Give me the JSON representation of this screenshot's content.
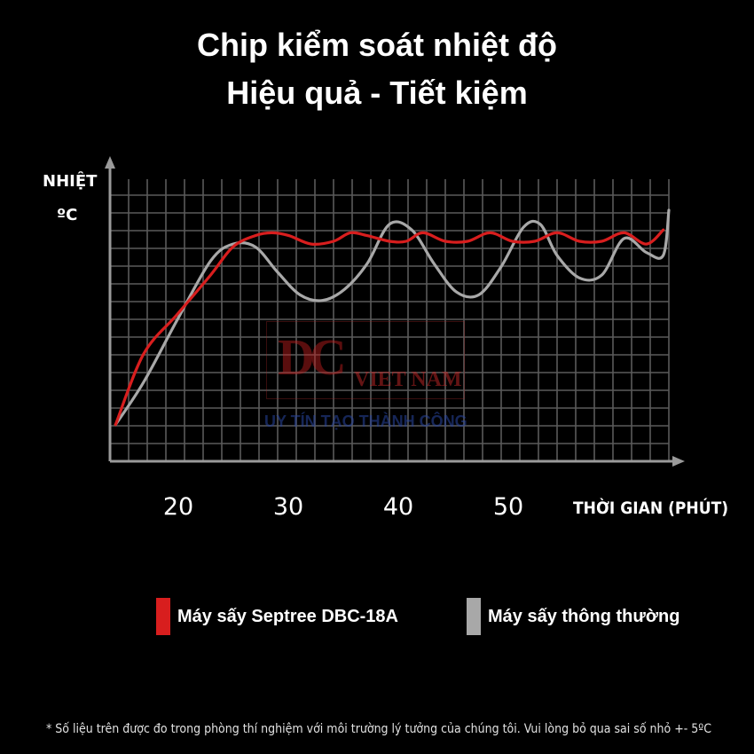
{
  "header": {
    "title_line1": "Chip kiểm soát nhiệt độ",
    "title_line2": "Hiệu quả - Tiết kiệm"
  },
  "watermark": {
    "logo": "DC",
    "brand": "VIET NAM",
    "slogan": "UY TÍN TẠO THÀNH CÔNG"
  },
  "footnote": "* Số liệu trên được đo trong phòng thí nghiệm với môi trường lý tưởng của chúng tôi. Vui lòng bỏ qua sai số nhỏ +- 5ºC",
  "colors": {
    "background": "#000000",
    "grid": "#5a5a5a",
    "axis": "#9a9a9a",
    "series_septree": "#d81e1e",
    "series_normal": "#a8a8a8"
  },
  "chart_data": {
    "type": "line",
    "title": "Chip kiểm soát nhiệt độ",
    "ylabel_line1": "NHIỆT",
    "ylabel_line2": "ºC",
    "xlabel": "THỜI GIAN (PHÚT)",
    "xticks": [
      "20",
      "30",
      "40",
      "50"
    ],
    "xlim": [
      10,
      60
    ],
    "ylim": [
      0,
      10
    ],
    "grid": true,
    "legend_position": "bottom",
    "series": [
      {
        "name": "Máy sấy Septree DBC-18A",
        "color": "#d81e1e",
        "x": [
          10.5,
          13,
          16,
          19,
          21,
          23,
          24.5,
          26,
          28,
          30,
          31.5,
          33,
          35,
          36.5,
          38,
          40,
          42,
          44,
          46,
          48,
          50,
          52,
          54,
          56,
          58,
          59.5
        ],
        "y": [
          1.3,
          3.8,
          5.2,
          6.6,
          7.6,
          8.0,
          8.1,
          8.0,
          7.7,
          7.8,
          8.1,
          8.0,
          7.8,
          7.8,
          8.1,
          7.8,
          7.8,
          8.1,
          7.8,
          7.8,
          8.1,
          7.8,
          7.8,
          8.1,
          7.7,
          8.2
        ]
      },
      {
        "name": "Máy sấy thông thường",
        "color": "#a8a8a8",
        "x": [
          10.5,
          13,
          16,
          19,
          21,
          23,
          25,
          27,
          29,
          31,
          33,
          35,
          37,
          39,
          41,
          43,
          45,
          47,
          48.5,
          50,
          52,
          54,
          56,
          58,
          59.5,
          60
        ],
        "y": [
          1.3,
          2.8,
          5.0,
          7.1,
          7.7,
          7.6,
          6.7,
          5.9,
          5.7,
          6.1,
          7.0,
          8.4,
          8.2,
          7.0,
          6.0,
          5.9,
          6.9,
          8.3,
          8.4,
          7.3,
          6.5,
          6.6,
          7.9,
          7.4,
          7.3,
          8.9
        ]
      }
    ]
  }
}
